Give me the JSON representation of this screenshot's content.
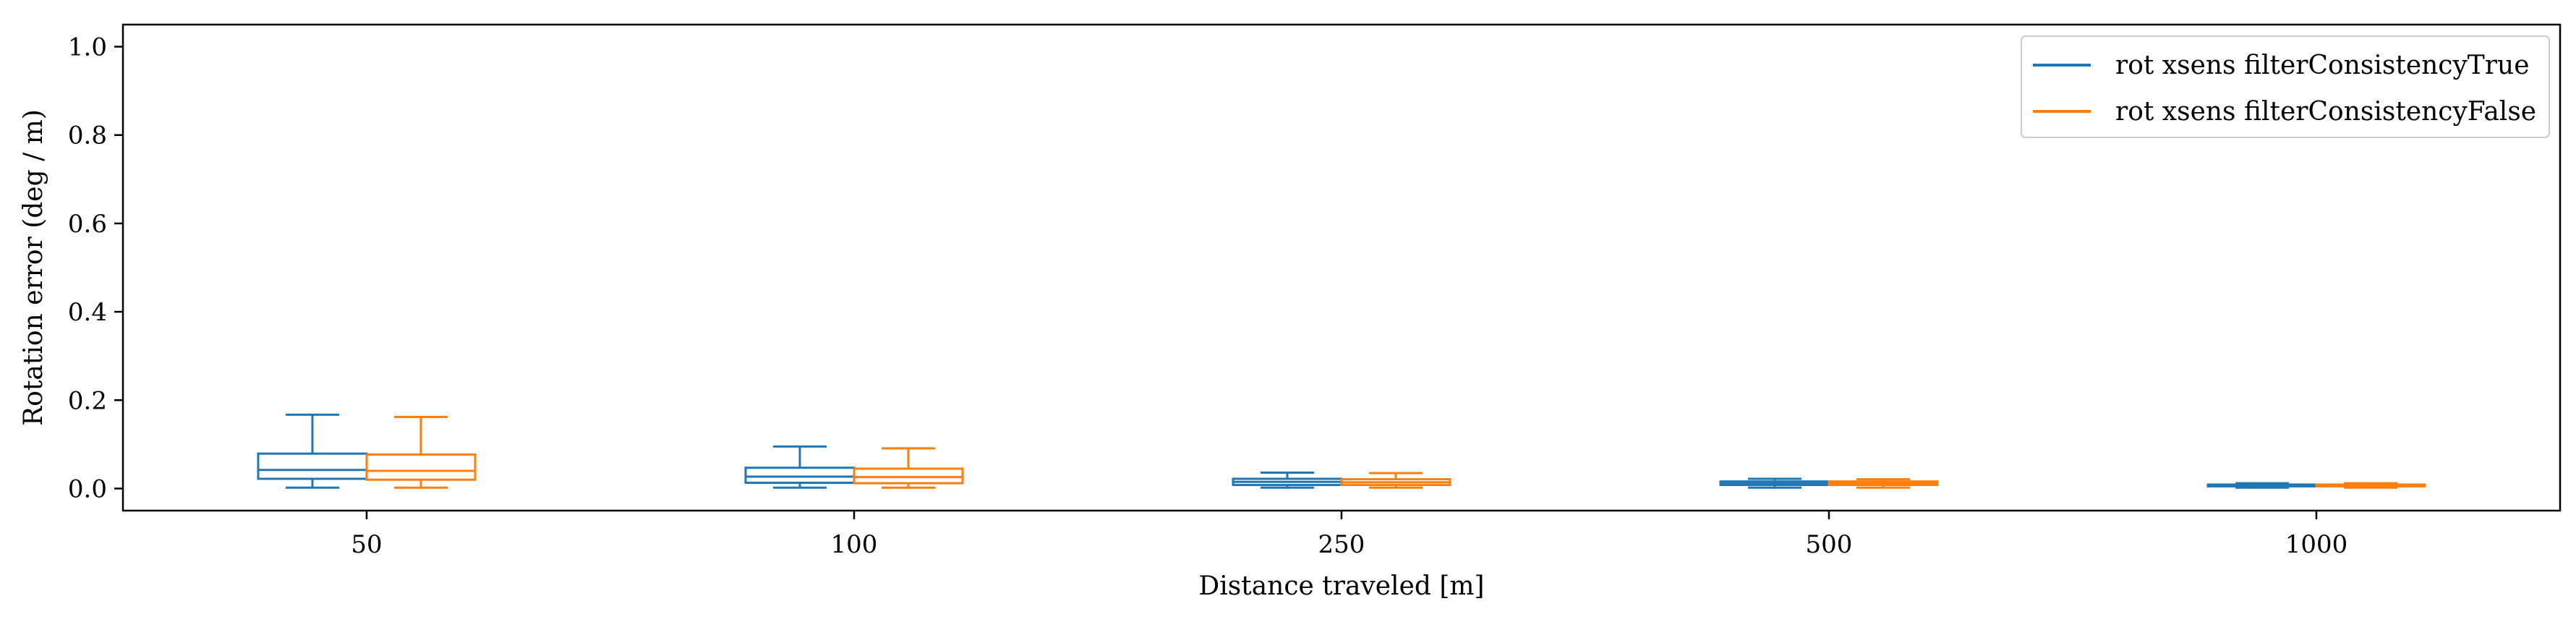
{
  "chart_data": {
    "type": "boxplot",
    "xlabel": "Distance traveled [m]",
    "ylabel": "Rotation error (deg / m)",
    "categories": [
      "50",
      "100",
      "250",
      "500",
      "1000"
    ],
    "ylim": [
      -0.05,
      1.05
    ],
    "yticks": [
      0.0,
      0.2,
      0.4,
      0.6,
      0.8,
      1.0
    ],
    "ytick_labels": [
      "0.0",
      "0.2",
      "0.4",
      "0.6",
      "0.8",
      "1.0"
    ],
    "grid": false,
    "legend_position": "top-right",
    "series": [
      {
        "name": "rot xsens filterConsistencyTrue",
        "color": "#1f77b4",
        "boxes": [
          {
            "whislo": 0.002,
            "q1": 0.022,
            "med": 0.042,
            "q3": 0.079,
            "whishi": 0.167
          },
          {
            "whislo": 0.002,
            "q1": 0.013,
            "med": 0.027,
            "q3": 0.047,
            "whishi": 0.095
          },
          {
            "whislo": 0.002,
            "q1": 0.008,
            "med": 0.015,
            "q3": 0.022,
            "whishi": 0.036
          },
          {
            "whislo": 0.002,
            "q1": 0.008,
            "med": 0.012,
            "q3": 0.016,
            "whishi": 0.022
          },
          {
            "whislo": 0.002,
            "q1": 0.005,
            "med": 0.007,
            "q3": 0.009,
            "whishi": 0.012
          }
        ]
      },
      {
        "name": "rot xsens filterConsistencyFalse",
        "color": "#ff7f0e",
        "boxes": [
          {
            "whislo": 0.002,
            "q1": 0.02,
            "med": 0.04,
            "q3": 0.077,
            "whishi": 0.162
          },
          {
            "whislo": 0.002,
            "q1": 0.012,
            "med": 0.026,
            "q3": 0.045,
            "whishi": 0.091
          },
          {
            "whislo": 0.002,
            "q1": 0.008,
            "med": 0.014,
            "q3": 0.021,
            "whishi": 0.035
          },
          {
            "whislo": 0.002,
            "q1": 0.008,
            "med": 0.012,
            "q3": 0.016,
            "whishi": 0.021
          },
          {
            "whislo": 0.002,
            "q1": 0.005,
            "med": 0.007,
            "q3": 0.009,
            "whishi": 0.012
          }
        ]
      }
    ]
  }
}
